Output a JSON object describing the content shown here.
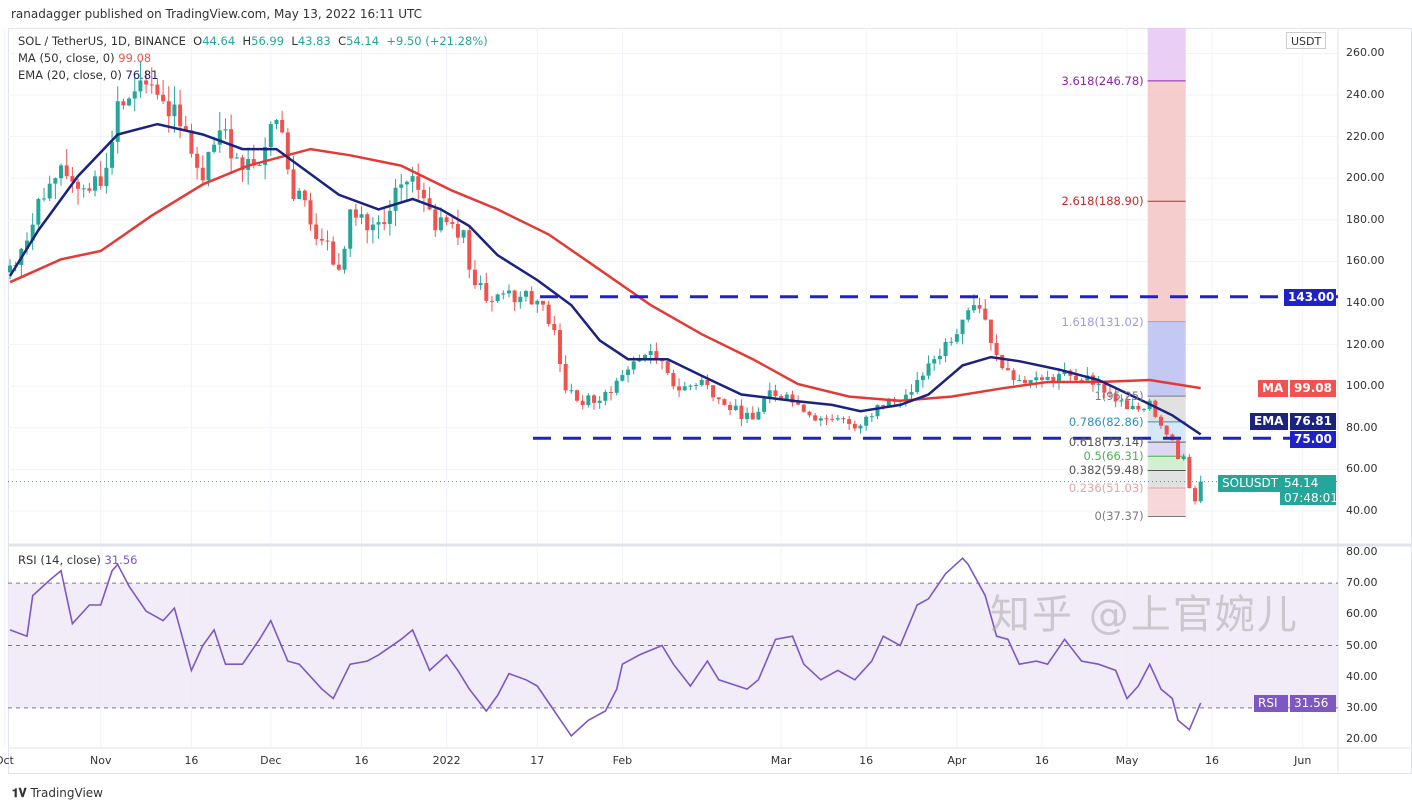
{
  "publisher": "ranadagger published on TradingView.com, May 13, 2022 16:11 UTC",
  "legend": {
    "symbol": "SOL / TetherUS, 1D, BINANCE",
    "o_label": "O",
    "o": "44.64",
    "h_label": "H",
    "h": "56.99",
    "l_label": "L",
    "l": "43.83",
    "c_label": "C",
    "c": "54.14",
    "change": "+9.50 (+21.28%)",
    "ma": "MA (50, close, 0)",
    "ma_val": "99.08",
    "ema": "EMA (20, close, 0)",
    "ema_val": "76.81",
    "rsi": "RSI (14, close)",
    "rsi_val": "31.56"
  },
  "badges": {
    "currency": "USDT",
    "ma_label": "MA",
    "ma_val": "99.08",
    "ema_label": "EMA",
    "ema_val": "76.81",
    "support": "75.00",
    "resistance": "143.00",
    "sym": "SOLUSDT",
    "price": "54.14",
    "countdown": "07:48:01",
    "rsi_label": "RSI",
    "rsi_val": "31.56"
  },
  "price_axis": [
    "260.00",
    "240.00",
    "220.00",
    "200.00",
    "180.00",
    "160.00",
    "140.00",
    "120.00",
    "100.00",
    "80.00",
    "60.00",
    "40.00"
  ],
  "rsi_axis": [
    "80.00",
    "70.00",
    "60.00",
    "50.00",
    "40.00",
    "30.00",
    "20.00"
  ],
  "time_axis": [
    {
      "t": "Oct",
      "d": -1
    },
    {
      "t": "Nov",
      "d": 16
    },
    {
      "t": "16",
      "d": 32
    },
    {
      "t": "Dec",
      "d": 46
    },
    {
      "t": "16",
      "d": 62
    },
    {
      "t": "2022",
      "d": 77
    },
    {
      "t": "17",
      "d": 93
    },
    {
      "t": "Feb",
      "d": 108
    },
    {
      "t": "Mar",
      "d": 136
    },
    {
      "t": "16",
      "d": 151
    },
    {
      "t": "Apr",
      "d": 167
    },
    {
      "t": "16",
      "d": 182
    },
    {
      "t": "May",
      "d": 197
    },
    {
      "t": "16",
      "d": 212
    },
    {
      "t": "Jun",
      "d": 228
    }
  ],
  "fib": [
    {
      "label": "0(37.37)",
      "v": 37.37,
      "color": "#787b86"
    },
    {
      "label": "0.236(51.03)",
      "v": 51.03,
      "color": "#e0a8a8"
    },
    {
      "label": "0.382(59.48)",
      "v": 59.48,
      "color": "#555"
    },
    {
      "label": "0.5(66.31)",
      "v": 66.31,
      "color": "#4caf50"
    },
    {
      "label": "0.618(73.14)",
      "v": 73.14,
      "color": "#555"
    },
    {
      "label": "0.786(82.86)",
      "v": 82.86,
      "color": "#2f8fbf"
    },
    {
      "label": "1(95.25)",
      "v": 95.25,
      "color": "#787b86"
    },
    {
      "label": "1.618(131.02)",
      "v": 131.02,
      "color": "#9c9fd6"
    },
    {
      "label": "2.618(188.90)",
      "v": 188.9,
      "color": "#c62828"
    },
    {
      "label": "3.618(246.78)",
      "v": 246.78,
      "color": "#8e24aa"
    }
  ],
  "footer": {
    "brand": "TradingView",
    "watermark": "知乎 @上官婉儿"
  },
  "colors": {
    "up": "#26a69a",
    "down": "#ef5350",
    "ma": "#e53935",
    "ema": "#1a237e",
    "rsi": "#7e57c2",
    "level": "#1e22c8"
  },
  "chart_data": {
    "type": "candlestick",
    "title": "SOL / TetherUS, 1D, BINANCE",
    "x_unit": "days since 2021-10-15",
    "ylim": [
      30,
      265
    ],
    "rsi_ylim": [
      17,
      85
    ],
    "levels": [
      143,
      75
    ],
    "last_candle": {
      "o": 44.64,
      "h": 56.99,
      "l": 43.83,
      "c": 54.14
    },
    "close": [
      [
        0,
        158
      ],
      [
        3,
        170
      ],
      [
        5,
        190
      ],
      [
        8,
        200
      ],
      [
        10,
        201
      ],
      [
        14,
        194
      ],
      [
        17,
        205
      ],
      [
        19,
        237
      ],
      [
        20,
        235
      ],
      [
        23,
        247
      ],
      [
        25,
        245
      ],
      [
        27,
        237
      ],
      [
        30,
        225
      ],
      [
        31,
        223
      ],
      [
        33,
        205
      ],
      [
        34,
        199
      ],
      [
        37,
        223
      ],
      [
        40,
        210
      ],
      [
        41,
        204
      ],
      [
        45,
        215
      ],
      [
        47,
        228
      ],
      [
        48,
        222
      ],
      [
        50,
        190
      ],
      [
        51,
        194
      ],
      [
        55,
        170
      ],
      [
        58,
        156
      ],
      [
        60,
        185
      ],
      [
        63,
        175
      ],
      [
        66,
        178
      ],
      [
        69,
        197
      ],
      [
        71,
        201
      ],
      [
        74,
        185
      ],
      [
        75,
        175
      ],
      [
        78,
        178
      ],
      [
        80,
        175
      ],
      [
        81,
        156
      ],
      [
        84,
        141
      ],
      [
        88,
        146
      ],
      [
        90,
        143
      ],
      [
        93,
        141
      ],
      [
        96,
        127
      ],
      [
        98,
        98
      ],
      [
        100,
        93
      ],
      [
        104,
        93
      ],
      [
        109,
        108
      ],
      [
        112,
        115
      ],
      [
        115,
        112
      ],
      [
        118,
        98
      ],
      [
        122,
        103
      ],
      [
        126,
        91
      ],
      [
        131,
        84
      ],
      [
        134,
        98
      ],
      [
        137,
        96
      ],
      [
        141,
        86
      ],
      [
        145,
        84
      ],
      [
        150,
        81
      ],
      [
        153,
        91
      ],
      [
        157,
        93
      ],
      [
        160,
        103
      ],
      [
        163,
        113
      ],
      [
        168,
        132
      ],
      [
        170,
        139
      ],
      [
        172,
        132
      ],
      [
        174,
        115
      ],
      [
        178,
        103
      ],
      [
        182,
        103
      ],
      [
        187,
        105
      ],
      [
        192,
        101
      ],
      [
        197,
        89
      ],
      [
        200,
        89
      ],
      [
        201,
        93
      ],
      [
        203,
        81
      ],
      [
        205,
        74
      ],
      [
        206,
        65
      ],
      [
        207,
        66
      ],
      [
        208,
        51
      ],
      [
        209,
        44.64
      ],
      [
        210,
        54.14
      ]
    ],
    "ma50": [
      [
        0,
        150
      ],
      [
        9,
        161
      ],
      [
        16,
        165
      ],
      [
        25,
        182
      ],
      [
        34,
        197
      ],
      [
        42,
        206
      ],
      [
        53,
        214
      ],
      [
        60,
        211
      ],
      [
        69,
        206
      ],
      [
        78,
        194
      ],
      [
        86,
        185
      ],
      [
        95,
        173
      ],
      [
        104,
        156
      ],
      [
        113,
        139
      ],
      [
        122,
        125
      ],
      [
        131,
        113
      ],
      [
        139,
        101
      ],
      [
        148,
        95
      ],
      [
        157,
        93
      ],
      [
        166,
        95
      ],
      [
        175,
        99
      ],
      [
        183,
        102
      ],
      [
        192,
        102
      ],
      [
        201,
        103
      ],
      [
        210,
        99.08
      ]
    ],
    "ema20": [
      [
        0,
        153
      ],
      [
        5,
        175
      ],
      [
        12,
        201
      ],
      [
        19,
        221
      ],
      [
        26,
        226
      ],
      [
        34,
        221
      ],
      [
        41,
        214
      ],
      [
        47,
        214
      ],
      [
        51,
        206
      ],
      [
        58,
        192
      ],
      [
        65,
        185
      ],
      [
        71,
        190
      ],
      [
        76,
        185
      ],
      [
        81,
        177
      ],
      [
        86,
        163
      ],
      [
        93,
        151
      ],
      [
        99,
        139
      ],
      [
        104,
        122
      ],
      [
        109,
        113
      ],
      [
        116,
        113
      ],
      [
        122,
        105
      ],
      [
        129,
        96
      ],
      [
        138,
        93
      ],
      [
        145,
        91
      ],
      [
        150,
        88
      ],
      [
        157,
        91
      ],
      [
        162,
        96
      ],
      [
        168,
        110
      ],
      [
        173,
        114
      ],
      [
        178,
        112
      ],
      [
        185,
        108
      ],
      [
        192,
        103
      ],
      [
        199,
        94
      ],
      [
        205,
        86
      ],
      [
        210,
        76.81
      ]
    ],
    "rsi": [
      [
        0,
        55
      ],
      [
        3,
        53
      ],
      [
        4,
        66
      ],
      [
        7,
        71
      ],
      [
        9,
        74
      ],
      [
        11,
        57
      ],
      [
        14,
        63
      ],
      [
        16,
        63
      ],
      [
        18,
        74
      ],
      [
        19,
        76
      ],
      [
        21,
        69
      ],
      [
        24,
        61
      ],
      [
        27,
        58
      ],
      [
        29,
        62
      ],
      [
        32,
        42
      ],
      [
        34,
        50
      ],
      [
        36,
        55
      ],
      [
        38,
        44
      ],
      [
        41,
        44
      ],
      [
        44,
        52
      ],
      [
        46,
        58
      ],
      [
        49,
        45
      ],
      [
        51,
        44
      ],
      [
        55,
        36
      ],
      [
        57,
        33
      ],
      [
        60,
        44
      ],
      [
        63,
        45
      ],
      [
        65,
        47
      ],
      [
        69,
        52
      ],
      [
        71,
        55
      ],
      [
        74,
        42
      ],
      [
        77,
        47
      ],
      [
        79,
        42
      ],
      [
        81,
        36
      ],
      [
        84,
        29
      ],
      [
        86,
        34
      ],
      [
        88,
        41
      ],
      [
        91,
        39
      ],
      [
        93,
        37
      ],
      [
        96,
        29
      ],
      [
        99,
        21
      ],
      [
        102,
        26
      ],
      [
        105,
        29
      ],
      [
        107,
        36
      ],
      [
        108,
        44
      ],
      [
        111,
        47
      ],
      [
        115,
        50
      ],
      [
        117,
        44
      ],
      [
        120,
        37
      ],
      [
        123,
        45
      ],
      [
        125,
        39
      ],
      [
        130,
        36
      ],
      [
        132,
        39
      ],
      [
        135,
        52
      ],
      [
        138,
        53
      ],
      [
        140,
        44
      ],
      [
        143,
        39
      ],
      [
        146,
        42
      ],
      [
        149,
        39
      ],
      [
        152,
        45
      ],
      [
        154,
        53
      ],
      [
        157,
        50
      ],
      [
        160,
        63
      ],
      [
        162,
        65
      ],
      [
        165,
        73
      ],
      [
        168,
        78
      ],
      [
        169,
        76
      ],
      [
        172,
        66
      ],
      [
        174,
        53
      ],
      [
        176,
        52
      ],
      [
        178,
        44
      ],
      [
        181,
        45
      ],
      [
        183,
        44
      ],
      [
        186,
        52
      ],
      [
        189,
        45
      ],
      [
        192,
        44
      ],
      [
        195,
        42
      ],
      [
        197,
        33
      ],
      [
        199,
        37
      ],
      [
        201,
        44
      ],
      [
        203,
        36
      ],
      [
        205,
        33
      ],
      [
        206,
        26
      ],
      [
        208,
        23
      ],
      [
        210,
        31.56
      ]
    ]
  }
}
